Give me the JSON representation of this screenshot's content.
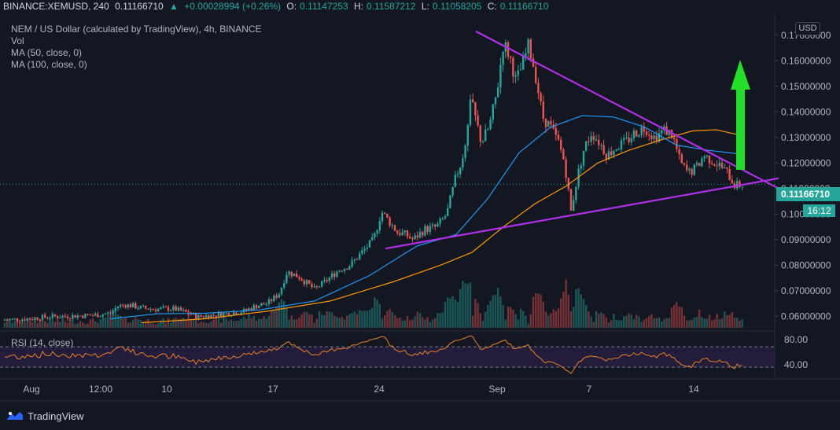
{
  "header": {
    "symbol": "BINANCE:XEMUSD, 240",
    "price": "0.11166710",
    "change_arrow": "▲",
    "change": "+0.00028994 (+0.26%)",
    "o_label": "O:",
    "o_value": "0.11147253",
    "h_label": "H:",
    "h_value": "0.11587212",
    "l_label": "L:",
    "l_value": "0.11058205",
    "c_label": "C:",
    "c_value": "0.11166710"
  },
  "legend": {
    "title": "NEM / US Dollar (calculated by TradingView), 4h, BINANCE",
    "vol": "Vol",
    "ma50": "MA (50, close, 0)",
    "ma100": "MA (100, close, 0)"
  },
  "currency_button": "USD",
  "current_price_tag": "0.11166710",
  "countdown_tag": "16:12",
  "rsi_label": "RSI (14, close)",
  "brand": "TradingView",
  "icons": {
    "up_arrow": "up-arrow-icon",
    "brand_logo": "tradingview-logo-icon"
  },
  "colors": {
    "background": "#131722",
    "up": "#26a69a",
    "down": "#ef5350",
    "ma50": "#2196f3",
    "ma100": "#ff9800",
    "trendline": "#b12fe8",
    "arrow": "#22e02a",
    "rsi": "#e8822a"
  },
  "chart_data": {
    "type": "candlestick",
    "title": "NEM / US Dollar (calculated by TradingView), 4h, BINANCE",
    "price_axis_ticks": [
      "0.06000000",
      "0.07000000",
      "0.08000000",
      "0.09000000",
      "0.10000000",
      "0.11000000",
      "0.12000000",
      "0.13000000",
      "0.14000000",
      "0.15000000",
      "0.16000000",
      "0.17000000"
    ],
    "price_axis_top_label": "0.1",
    "price_range": [
      0.0555,
      0.177
    ],
    "time_axis_labels": [
      "Aug",
      "12:00",
      "10",
      "17",
      "24",
      "Sep",
      "7",
      "14"
    ],
    "rsi_ticks": [
      "80.00",
      "40.00"
    ],
    "rsi_range": [
      10,
      95
    ],
    "rsi_bands": [
      70,
      30
    ],
    "close_profile": [
      [
        0,
        0.0585
      ],
      [
        20,
        0.0588
      ],
      [
        40,
        0.0592
      ],
      [
        60,
        0.0598
      ],
      [
        80,
        0.06
      ],
      [
        100,
        0.0602
      ],
      [
        120,
        0.0604
      ],
      [
        140,
        0.0612
      ],
      [
        150,
        0.064
      ],
      [
        160,
        0.0645
      ],
      [
        170,
        0.064
      ],
      [
        180,
        0.0632
      ],
      [
        200,
        0.0628
      ],
      [
        220,
        0.063
      ],
      [
        240,
        0.0612
      ],
      [
        250,
        0.0598
      ],
      [
        270,
        0.0604
      ],
      [
        290,
        0.0612
      ],
      [
        310,
        0.062
      ],
      [
        325,
        0.064
      ],
      [
        340,
        0.065
      ],
      [
        355,
        0.069
      ],
      [
        365,
        0.0775
      ],
      [
        380,
        0.0755
      ],
      [
        400,
        0.0705
      ],
      [
        415,
        0.074
      ],
      [
        430,
        0.078
      ],
      [
        445,
        0.08
      ],
      [
        460,
        0.085
      ],
      [
        475,
        0.09
      ],
      [
        485,
        0.101
      ],
      [
        495,
        0.097
      ],
      [
        505,
        0.093
      ],
      [
        515,
        0.092
      ],
      [
        525,
        0.09
      ],
      [
        540,
        0.094
      ],
      [
        555,
        0.095
      ],
      [
        568,
        0.1
      ],
      [
        580,
        0.115
      ],
      [
        590,
        0.123
      ],
      [
        598,
        0.145
      ],
      [
        605,
        0.137
      ],
      [
        612,
        0.128
      ],
      [
        622,
        0.134
      ],
      [
        632,
        0.148
      ],
      [
        640,
        0.167
      ],
      [
        648,
        0.162
      ],
      [
        656,
        0.152
      ],
      [
        664,
        0.158
      ],
      [
        672,
        0.166
      ],
      [
        680,
        0.156
      ],
      [
        690,
        0.138
      ],
      [
        700,
        0.134
      ],
      [
        710,
        0.128
      ],
      [
        718,
        0.12
      ],
      [
        726,
        0.101
      ],
      [
        733,
        0.113
      ],
      [
        742,
        0.125
      ],
      [
        752,
        0.132
      ],
      [
        762,
        0.128
      ],
      [
        772,
        0.123
      ],
      [
        782,
        0.126
      ],
      [
        795,
        0.128
      ],
      [
        808,
        0.132
      ],
      [
        820,
        0.134
      ],
      [
        832,
        0.13
      ],
      [
        845,
        0.133
      ],
      [
        855,
        0.131
      ],
      [
        865,
        0.12
      ],
      [
        875,
        0.116
      ],
      [
        885,
        0.118
      ],
      [
        895,
        0.123
      ],
      [
        905,
        0.121
      ],
      [
        915,
        0.119
      ],
      [
        925,
        0.116
      ],
      [
        935,
        0.111
      ],
      [
        945,
        0.1117
      ]
    ],
    "ma50_profile": [
      [
        140,
        0.059
      ],
      [
        200,
        0.061
      ],
      [
        260,
        0.0612
      ],
      [
        330,
        0.0625
      ],
      [
        400,
        0.066
      ],
      [
        470,
        0.076
      ],
      [
        530,
        0.0875
      ],
      [
        580,
        0.092
      ],
      [
        620,
        0.106
      ],
      [
        660,
        0.124
      ],
      [
        700,
        0.134
      ],
      [
        740,
        0.1385
      ],
      [
        780,
        0.138
      ],
      [
        820,
        0.134
      ],
      [
        860,
        0.127
      ],
      [
        900,
        0.125
      ],
      [
        940,
        0.1235
      ]
    ],
    "ma100_profile": [
      [
        180,
        0.0575
      ],
      [
        260,
        0.059
      ],
      [
        340,
        0.062
      ],
      [
        420,
        0.066
      ],
      [
        500,
        0.0735
      ],
      [
        560,
        0.08
      ],
      [
        600,
        0.085
      ],
      [
        640,
        0.095
      ],
      [
        680,
        0.104
      ],
      [
        720,
        0.111
      ],
      [
        760,
        0.12
      ],
      [
        800,
        0.125
      ],
      [
        840,
        0.129
      ],
      [
        880,
        0.1325
      ],
      [
        910,
        0.133
      ],
      [
        940,
        0.131
      ]
    ],
    "upper_trendline": [
      [
        605,
        0.1715
      ],
      [
        990,
        0.11
      ]
    ],
    "lower_trendline": [
      [
        490,
        0.0865
      ],
      [
        990,
        0.114
      ]
    ],
    "annotation": "green up arrow (bullish breakout expectation)"
  }
}
